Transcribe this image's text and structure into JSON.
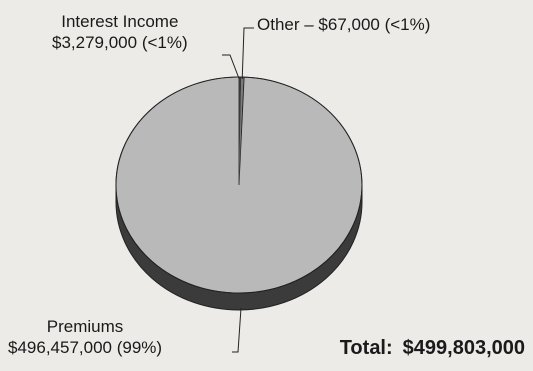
{
  "chart_data": {
    "type": "pie",
    "slices": [
      {
        "label": "Premiums",
        "value": 496457000,
        "value_text": "$496,457,000",
        "pct_text": "(99%)",
        "color": "#b9b9b9"
      },
      {
        "label": "Interest Income",
        "value": 3279000,
        "value_text": "$3,279,000",
        "pct_text": "(<1%)",
        "color": "#7a7a7a"
      },
      {
        "label": "Other",
        "value": 67000,
        "value_text": "$67,000",
        "pct_text": "(<1%)",
        "color": "#3a3a3a"
      }
    ],
    "other_label_text": "Other – $67,000 (<1%)",
    "total_label": "Total:",
    "total_value": "$499,803,000",
    "style": "3d-pie",
    "colors": {
      "premiums": "#b9b9b9",
      "side": "#3b3b3b",
      "outline": "#222222"
    }
  }
}
